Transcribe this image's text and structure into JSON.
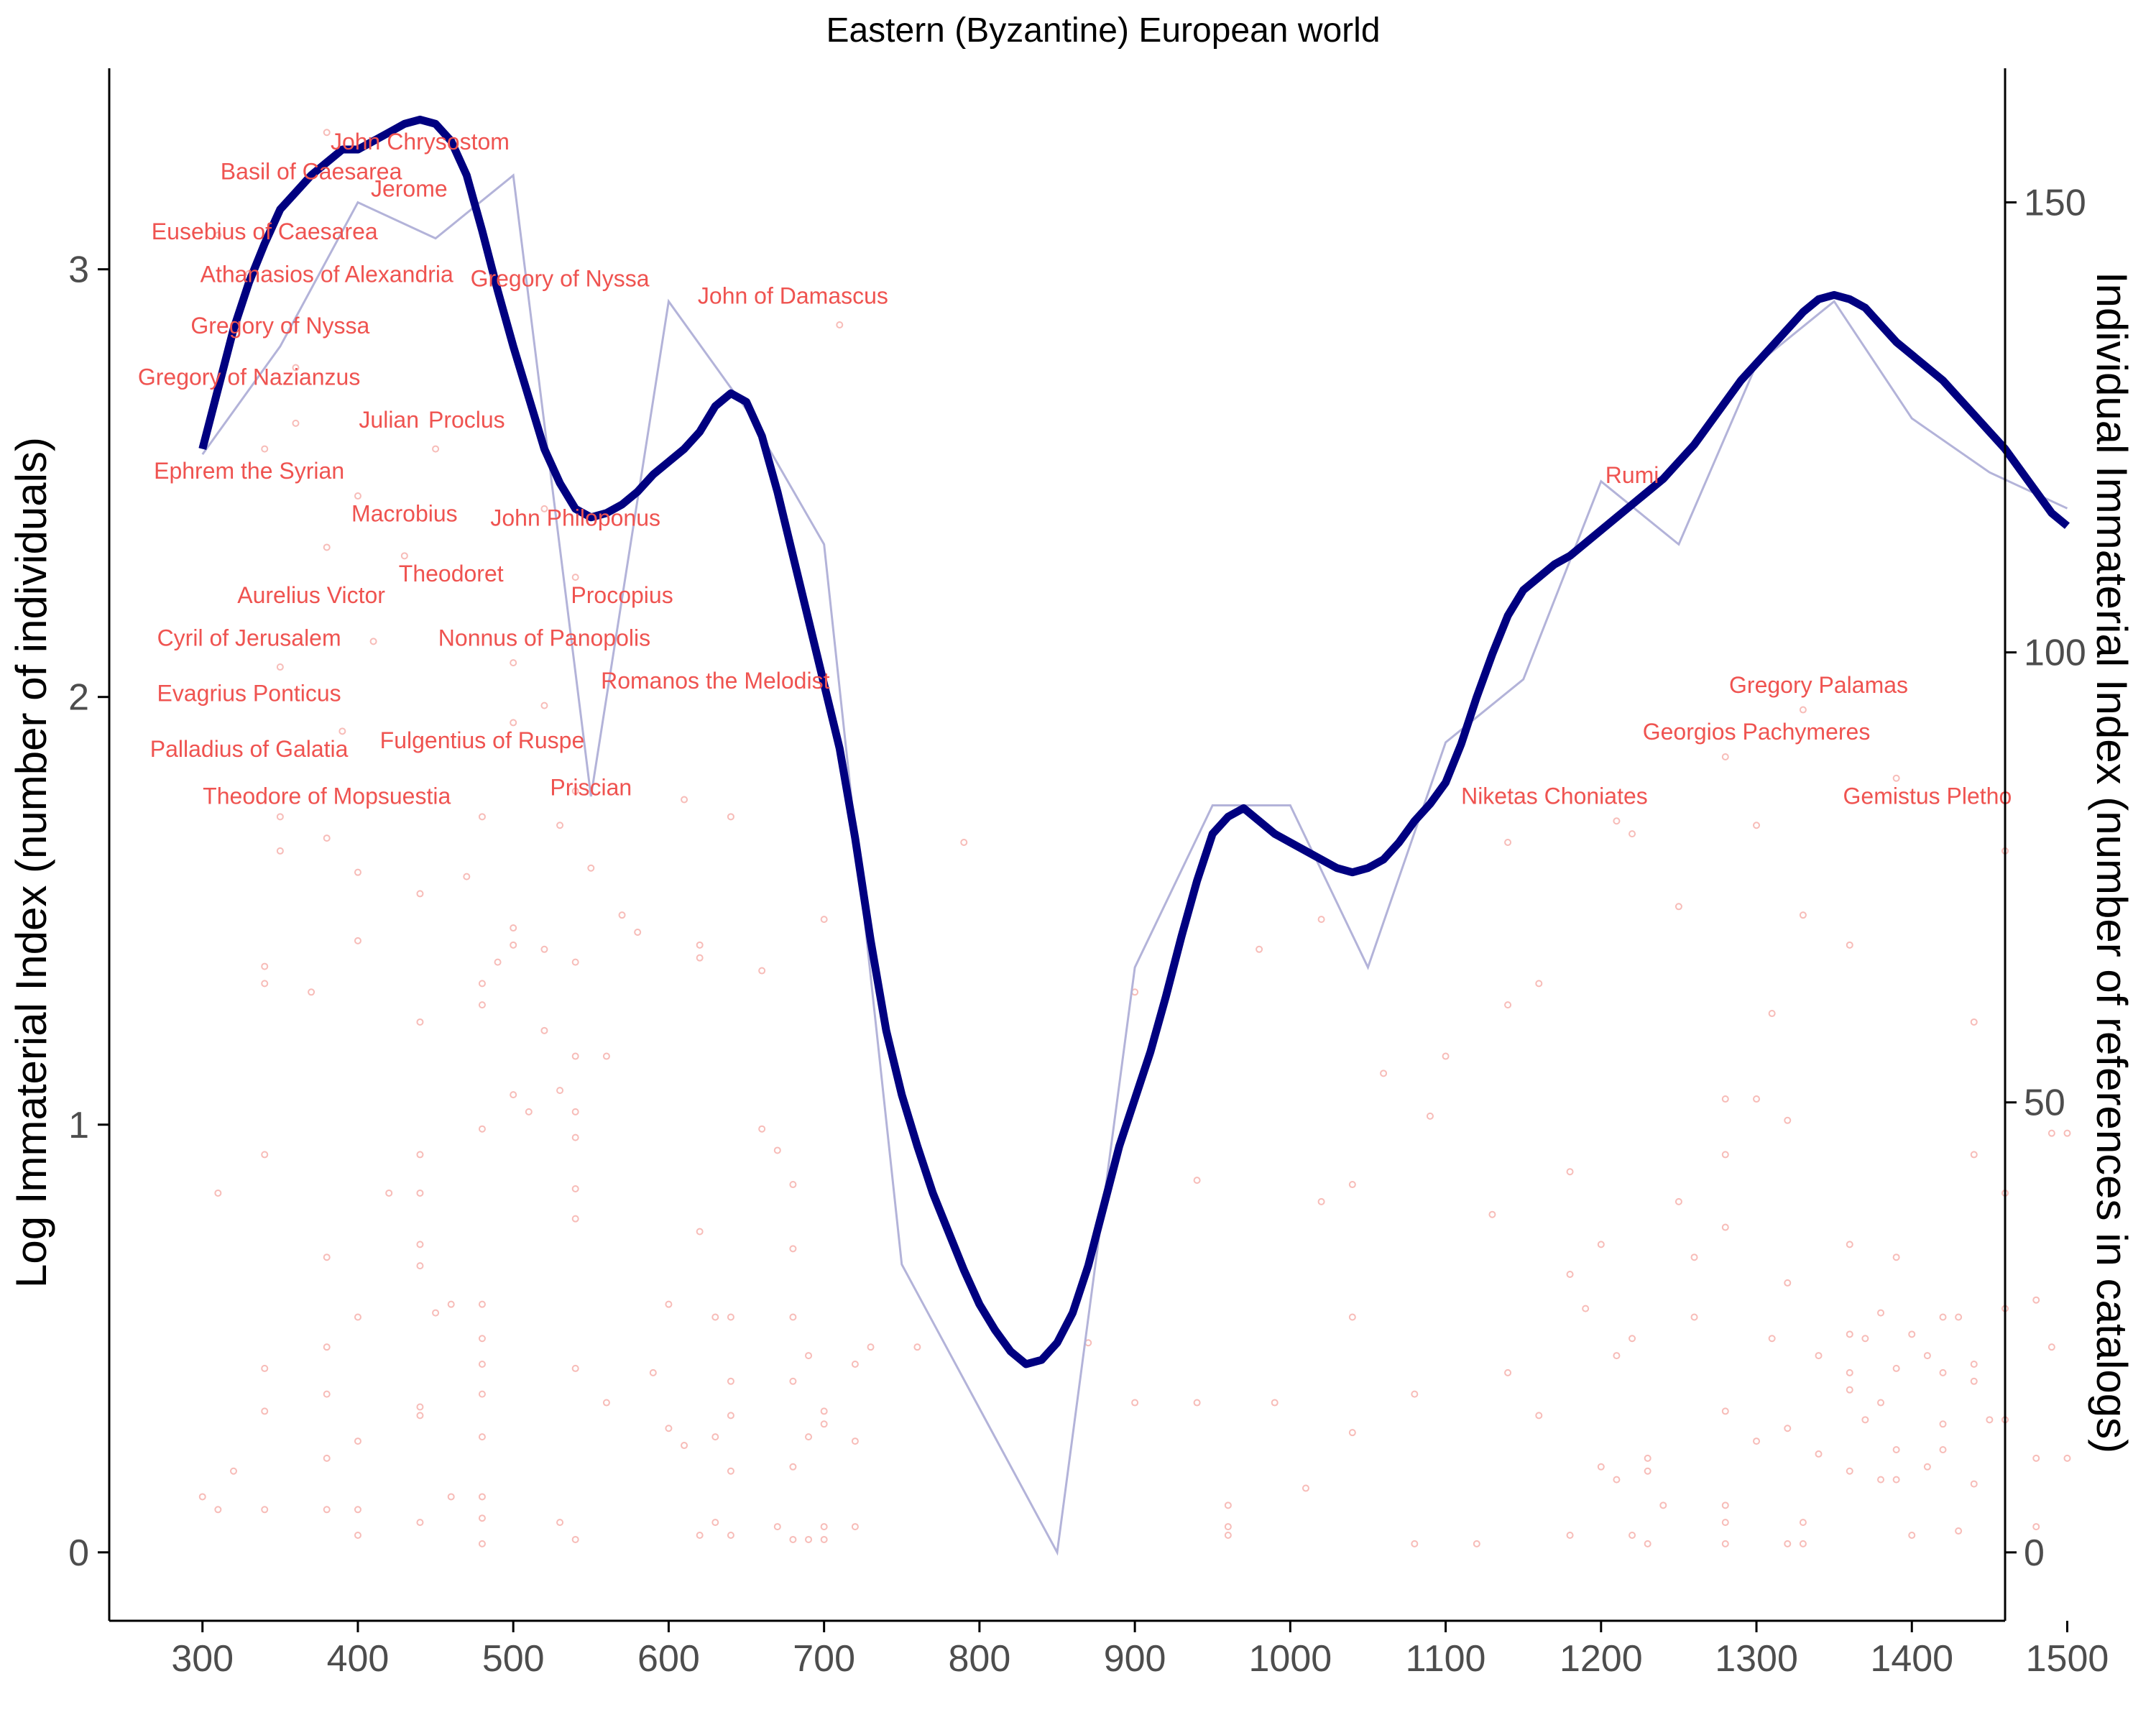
{
  "chart_data": {
    "type": "line",
    "title": "Eastern (Byzantine) European world",
    "xlabel": "",
    "ylabel": "Log Immaterial Index (number of individuals)",
    "y2label": "Individual Immaterial Index (number of references in catalogs)",
    "xlim": [
      240,
      1460
    ],
    "ylim": [
      -0.16,
      3.47
    ],
    "y2lim": [
      -7.6,
      164.9
    ],
    "x_ticks": [
      300,
      400,
      500,
      600,
      700,
      800,
      900,
      1000,
      1100,
      1200,
      1300,
      1400,
      1500
    ],
    "y_ticks": [
      0,
      1,
      2,
      3
    ],
    "y2_ticks": [
      0,
      50,
      100,
      150
    ],
    "colors": {
      "smooth": "#000080",
      "raw": "#b3b3d9",
      "points": "#f4a5a0",
      "labels": "#ef5350",
      "axis": "#000000"
    },
    "series": [
      {
        "role": "smoothed log index (left axis)",
        "x": [
          300,
          310,
          320,
          330,
          340,
          350,
          360,
          370,
          380,
          390,
          400,
          410,
          420,
          430,
          440,
          450,
          460,
          470,
          480,
          490,
          500,
          510,
          520,
          530,
          540,
          550,
          560,
          570,
          580,
          590,
          600,
          610,
          620,
          630,
          640,
          650,
          660,
          670,
          680,
          690,
          700,
          710,
          720,
          730,
          740,
          750,
          760,
          770,
          780,
          790,
          800,
          810,
          820,
          830,
          840,
          850,
          860,
          870,
          880,
          890,
          900,
          910,
          920,
          930,
          940,
          950,
          960,
          970,
          980,
          990,
          1000,
          1010,
          1020,
          1030,
          1040,
          1050,
          1060,
          1070,
          1080,
          1090,
          1100,
          1110,
          1120,
          1130,
          1140,
          1150,
          1160,
          1170,
          1180,
          1190,
          1200,
          1210,
          1220,
          1230,
          1240,
          1250,
          1260,
          1270,
          1280,
          1290,
          1300,
          1310,
          1320,
          1330,
          1340,
          1350,
          1360,
          1370,
          1380,
          1390,
          1400,
          1410,
          1420,
          1430,
          1440,
          1450,
          1460,
          1470,
          1480,
          1490,
          1500
        ],
        "values": [
          2.58,
          2.72,
          2.86,
          2.97,
          3.06,
          3.14,
          3.18,
          3.22,
          3.25,
          3.28,
          3.28,
          3.3,
          3.32,
          3.34,
          3.35,
          3.34,
          3.3,
          3.22,
          3.09,
          2.95,
          2.82,
          2.7,
          2.58,
          2.5,
          2.44,
          2.42,
          2.43,
          2.45,
          2.48,
          2.52,
          2.55,
          2.58,
          2.62,
          2.68,
          2.71,
          2.69,
          2.61,
          2.48,
          2.33,
          2.18,
          2.03,
          1.88,
          1.67,
          1.43,
          1.22,
          1.07,
          0.95,
          0.84,
          0.75,
          0.66,
          0.58,
          0.52,
          0.47,
          0.44,
          0.45,
          0.49,
          0.56,
          0.67,
          0.81,
          0.95,
          1.06,
          1.17,
          1.3,
          1.44,
          1.57,
          1.68,
          1.72,
          1.74,
          1.71,
          1.68,
          1.66,
          1.64,
          1.62,
          1.6,
          1.59,
          1.6,
          1.62,
          1.66,
          1.71,
          1.75,
          1.8,
          1.89,
          2.0,
          2.1,
          2.19,
          2.25,
          2.28,
          2.31,
          2.33,
          2.36,
          2.39,
          2.42,
          2.45,
          2.48,
          2.51,
          2.55,
          2.59,
          2.64,
          2.69,
          2.74,
          2.78,
          2.82,
          2.86,
          2.9,
          2.93,
          2.94,
          2.93,
          2.91,
          2.87,
          2.83,
          2.8,
          2.77,
          2.74,
          2.7,
          2.66,
          2.62,
          2.58,
          2.53,
          2.48,
          2.43,
          2.4
        ]
      },
      {
        "role": "raw index (right axis)",
        "x": [
          300,
          350,
          400,
          450,
          500,
          550,
          600,
          650,
          700,
          750,
          800,
          850,
          900,
          950,
          1000,
          1050,
          1100,
          1150,
          1200,
          1250,
          1300,
          1350,
          1400,
          1450,
          1500
        ],
        "values": [
          122,
          134,
          150,
          146,
          153,
          84,
          139,
          127,
          112,
          32,
          16,
          0,
          65,
          83,
          83,
          65,
          90,
          97,
          119,
          112,
          132,
          139,
          126,
          120,
          116
        ]
      }
    ],
    "annotations": [
      {
        "text": "John Chrysostom",
        "x": 440,
        "y": 3.28
      },
      {
        "text": "Basil of Caesarea",
        "x": 370,
        "y": 3.21
      },
      {
        "text": "Jerome",
        "x": 433,
        "y": 3.17
      },
      {
        "text": "Eusebius of Caesarea",
        "x": 340,
        "y": 3.07
      },
      {
        "text": "Athanasios of Alexandria",
        "x": 380,
        "y": 2.97
      },
      {
        "text": "Gregory of Nyssa",
        "x": 530,
        "y": 2.96
      },
      {
        "text": "Gregory of Nyssa",
        "x": 350,
        "y": 2.85
      },
      {
        "text": "John of Damascus",
        "x": 680,
        "y": 2.92
      },
      {
        "text": "Gregory of Nazianzus",
        "x": 330,
        "y": 2.73
      },
      {
        "text": "Julian",
        "x": 420,
        "y": 2.63
      },
      {
        "text": "Proclus",
        "x": 470,
        "y": 2.63
      },
      {
        "text": "Ephrem the Syrian",
        "x": 330,
        "y": 2.51
      },
      {
        "text": "Rumi",
        "x": 1220,
        "y": 2.5
      },
      {
        "text": "Macrobius",
        "x": 430,
        "y": 2.41
      },
      {
        "text": "John Philoponus",
        "x": 540,
        "y": 2.4
      },
      {
        "text": "Theodoret",
        "x": 460,
        "y": 2.27
      },
      {
        "text": "Procopius",
        "x": 570,
        "y": 2.22
      },
      {
        "text": "Aurelius Victor",
        "x": 370,
        "y": 2.22
      },
      {
        "text": "Cyril of Jerusalem",
        "x": 330,
        "y": 2.12
      },
      {
        "text": "Nonnus of Panopolis",
        "x": 520,
        "y": 2.12
      },
      {
        "text": "Romanos the Melodist",
        "x": 630,
        "y": 2.02
      },
      {
        "text": "Gregory Palamas",
        "x": 1340,
        "y": 2.01
      },
      {
        "text": "Evagrius Ponticus",
        "x": 330,
        "y": 1.99
      },
      {
        "text": "Georgios Pachymeres",
        "x": 1300,
        "y": 1.9
      },
      {
        "text": "Fulgentius of Ruspe",
        "x": 480,
        "y": 1.88
      },
      {
        "text": "Palladius of Galatia",
        "x": 330,
        "y": 1.86
      },
      {
        "text": "Priscian",
        "x": 550,
        "y": 1.77
      },
      {
        "text": "Theodore of Mopsuestia",
        "x": 380,
        "y": 1.75
      },
      {
        "text": "Niketas Choniates",
        "x": 1170,
        "y": 1.75
      },
      {
        "text": "Gemistus Pletho",
        "x": 1410,
        "y": 1.75
      }
    ],
    "points": [
      [
        300,
        0.13
      ],
      [
        310,
        0.84
      ],
      [
        310,
        0.1
      ],
      [
        310,
        3.08
      ],
      [
        320,
        0.19
      ],
      [
        330,
        2.99
      ],
      [
        340,
        1.37
      ],
      [
        340,
        1.33
      ],
      [
        340,
        0.93
      ],
      [
        340,
        0.43
      ],
      [
        340,
        0.33
      ],
      [
        340,
        0.1
      ],
      [
        340,
        2.58
      ],
      [
        350,
        2.07
      ],
      [
        350,
        1.64
      ],
      [
        350,
        1.72
      ],
      [
        360,
        3.18
      ],
      [
        360,
        2.77
      ],
      [
        360,
        2.64
      ],
      [
        370,
        1.31
      ],
      [
        380,
        3.32
      ],
      [
        380,
        2.35
      ],
      [
        380,
        1.67
      ],
      [
        380,
        0.69
      ],
      [
        380,
        0.48
      ],
      [
        380,
        0.37
      ],
      [
        380,
        0.22
      ],
      [
        380,
        0.1
      ],
      [
        390,
        1.92
      ],
      [
        400,
        2.47
      ],
      [
        400,
        1.43
      ],
      [
        400,
        0.55
      ],
      [
        400,
        0.26
      ],
      [
        400,
        0.1
      ],
      [
        400,
        0.04
      ],
      [
        400,
        1.59
      ],
      [
        410,
        2.13
      ],
      [
        420,
        0.84
      ],
      [
        430,
        2.33
      ],
      [
        440,
        1.54
      ],
      [
        440,
        1.24
      ],
      [
        440,
        0.93
      ],
      [
        440,
        0.84
      ],
      [
        440,
        0.72
      ],
      [
        440,
        0.67
      ],
      [
        440,
        0.34
      ],
      [
        440,
        0.32
      ],
      [
        440,
        0.07
      ],
      [
        450,
        0.56
      ],
      [
        450,
        2.58
      ],
      [
        460,
        0.13
      ],
      [
        460,
        0.58
      ],
      [
        470,
        1.58
      ],
      [
        480,
        0.58
      ],
      [
        480,
        0.5
      ],
      [
        480,
        0.44
      ],
      [
        480,
        0.37
      ],
      [
        480,
        0.27
      ],
      [
        480,
        0.13
      ],
      [
        480,
        0.08
      ],
      [
        480,
        0.02
      ],
      [
        480,
        1.33
      ],
      [
        480,
        1.28
      ],
      [
        480,
        0.99
      ],
      [
        480,
        1.72
      ],
      [
        490,
        1.38
      ],
      [
        500,
        1.46
      ],
      [
        500,
        1.42
      ],
      [
        500,
        1.07
      ],
      [
        500,
        2.08
      ],
      [
        500,
        1.94
      ],
      [
        510,
        1.03
      ],
      [
        520,
        2.44
      ],
      [
        520,
        1.41
      ],
      [
        520,
        1.22
      ],
      [
        520,
        1.98
      ],
      [
        530,
        0.07
      ],
      [
        530,
        1.08
      ],
      [
        530,
        1.7
      ],
      [
        540,
        1.16
      ],
      [
        540,
        1.03
      ],
      [
        540,
        0.97
      ],
      [
        540,
        0.85
      ],
      [
        540,
        0.78
      ],
      [
        540,
        0.43
      ],
      [
        540,
        0.03
      ],
      [
        540,
        1.38
      ],
      [
        540,
        1.78
      ],
      [
        540,
        2.28
      ],
      [
        550,
        1.6
      ],
      [
        560,
        1.16
      ],
      [
        560,
        0.35
      ],
      [
        570,
        1.49
      ],
      [
        580,
        1.45
      ],
      [
        590,
        0.42
      ],
      [
        600,
        0.58
      ],
      [
        600,
        0.29
      ],
      [
        610,
        0.25
      ],
      [
        610,
        1.76
      ],
      [
        620,
        1.42
      ],
      [
        620,
        1.39
      ],
      [
        620,
        0.75
      ],
      [
        620,
        0.04
      ],
      [
        630,
        0.55
      ],
      [
        630,
        0.27
      ],
      [
        630,
        0.07
      ],
      [
        640,
        0.55
      ],
      [
        640,
        0.4
      ],
      [
        640,
        0.32
      ],
      [
        640,
        0.04
      ],
      [
        640,
        0.19
      ],
      [
        640,
        1.72
      ],
      [
        660,
        1.36
      ],
      [
        660,
        0.99
      ],
      [
        670,
        0.94
      ],
      [
        670,
        0.06
      ],
      [
        680,
        0.86
      ],
      [
        680,
        0.71
      ],
      [
        680,
        0.55
      ],
      [
        680,
        0.4
      ],
      [
        680,
        0.2
      ],
      [
        680,
        0.03
      ],
      [
        690,
        0.46
      ],
      [
        690,
        0.27
      ],
      [
        690,
        0.03
      ],
      [
        700,
        1.48
      ],
      [
        700,
        0.33
      ],
      [
        700,
        0.3
      ],
      [
        700,
        0.03
      ],
      [
        700,
        0.06
      ],
      [
        710,
        2.87
      ],
      [
        720,
        0.44
      ],
      [
        720,
        0.26
      ],
      [
        720,
        0.06
      ],
      [
        730,
        0.48
      ],
      [
        760,
        0.48
      ],
      [
        790,
        1.66
      ],
      [
        870,
        0.49
      ],
      [
        900,
        1.31
      ],
      [
        900,
        0.35
      ],
      [
        940,
        0.87
      ],
      [
        940,
        0.35
      ],
      [
        960,
        0.11
      ],
      [
        960,
        0.06
      ],
      [
        960,
        0.04
      ],
      [
        980,
        1.41
      ],
      [
        990,
        0.35
      ],
      [
        1010,
        0.15
      ],
      [
        1020,
        1.48
      ],
      [
        1020,
        0.82
      ],
      [
        1040,
        0.28
      ],
      [
        1040,
        0.55
      ],
      [
        1040,
        0.86
      ],
      [
        1060,
        1.12
      ],
      [
        1080,
        0.37
      ],
      [
        1080,
        0.02
      ],
      [
        1090,
        1.02
      ],
      [
        1100,
        1.16
      ],
      [
        1120,
        0.02
      ],
      [
        1130,
        0.79
      ],
      [
        1140,
        1.28
      ],
      [
        1140,
        0.42
      ],
      [
        1140,
        1.66
      ],
      [
        1160,
        1.33
      ],
      [
        1160,
        0.32
      ],
      [
        1180,
        0.89
      ],
      [
        1180,
        0.65
      ],
      [
        1180,
        0.04
      ],
      [
        1190,
        0.57
      ],
      [
        1200,
        0.72
      ],
      [
        1200,
        0.2
      ],
      [
        1210,
        0.46
      ],
      [
        1210,
        0.17
      ],
      [
        1210,
        1.71
      ],
      [
        1220,
        0.5
      ],
      [
        1220,
        1.68
      ],
      [
        1220,
        0.04
      ],
      [
        1230,
        0.22
      ],
      [
        1230,
        0.19
      ],
      [
        1230,
        0.02
      ],
      [
        1240,
        0.11
      ],
      [
        1250,
        1.51
      ],
      [
        1250,
        0.82
      ],
      [
        1260,
        0.69
      ],
      [
        1260,
        0.55
      ],
      [
        1280,
        1.06
      ],
      [
        1280,
        0.93
      ],
      [
        1280,
        0.76
      ],
      [
        1280,
        0.33
      ],
      [
        1280,
        0.11
      ],
      [
        1280,
        0.07
      ],
      [
        1280,
        0.02
      ],
      [
        1280,
        1.86
      ],
      [
        1300,
        1.06
      ],
      [
        1300,
        0.26
      ],
      [
        1300,
        1.7
      ],
      [
        1310,
        1.26
      ],
      [
        1310,
        0.5
      ],
      [
        1320,
        1.01
      ],
      [
        1320,
        0.63
      ],
      [
        1320,
        0.29
      ],
      [
        1320,
        0.02
      ],
      [
        1330,
        1.49
      ],
      [
        1330,
        0.07
      ],
      [
        1330,
        0.02
      ],
      [
        1330,
        1.97
      ],
      [
        1340,
        0.46
      ],
      [
        1340,
        0.23
      ],
      [
        1360,
        0.51
      ],
      [
        1360,
        0.42
      ],
      [
        1360,
        0.38
      ],
      [
        1360,
        0.19
      ],
      [
        1360,
        1.42
      ],
      [
        1360,
        0.72
      ],
      [
        1370,
        0.31
      ],
      [
        1370,
        0.5
      ],
      [
        1380,
        0.35
      ],
      [
        1380,
        0.17
      ],
      [
        1380,
        0.56
      ],
      [
        1390,
        0.69
      ],
      [
        1390,
        0.43
      ],
      [
        1390,
        0.24
      ],
      [
        1390,
        0.17
      ],
      [
        1390,
        1.81
      ],
      [
        1400,
        0.51
      ],
      [
        1400,
        0.04
      ],
      [
        1410,
        0.46
      ],
      [
        1410,
        0.2
      ],
      [
        1420,
        0.55
      ],
      [
        1420,
        0.42
      ],
      [
        1420,
        0.3
      ],
      [
        1420,
        0.24
      ],
      [
        1430,
        0.55
      ],
      [
        1430,
        0.05
      ],
      [
        1440,
        1.24
      ],
      [
        1440,
        0.93
      ],
      [
        1440,
        0.44
      ],
      [
        1440,
        0.4
      ],
      [
        1440,
        0.16
      ],
      [
        1450,
        0.31
      ],
      [
        1460,
        0.84
      ],
      [
        1460,
        0.57
      ],
      [
        1460,
        0.31
      ],
      [
        1460,
        1.64
      ],
      [
        1480,
        0.59
      ],
      [
        1480,
        0.22
      ],
      [
        1480,
        0.06
      ],
      [
        1490,
        0.48
      ],
      [
        1490,
        0.98
      ],
      [
        1500,
        0.98
      ],
      [
        1500,
        0.22
      ]
    ]
  }
}
